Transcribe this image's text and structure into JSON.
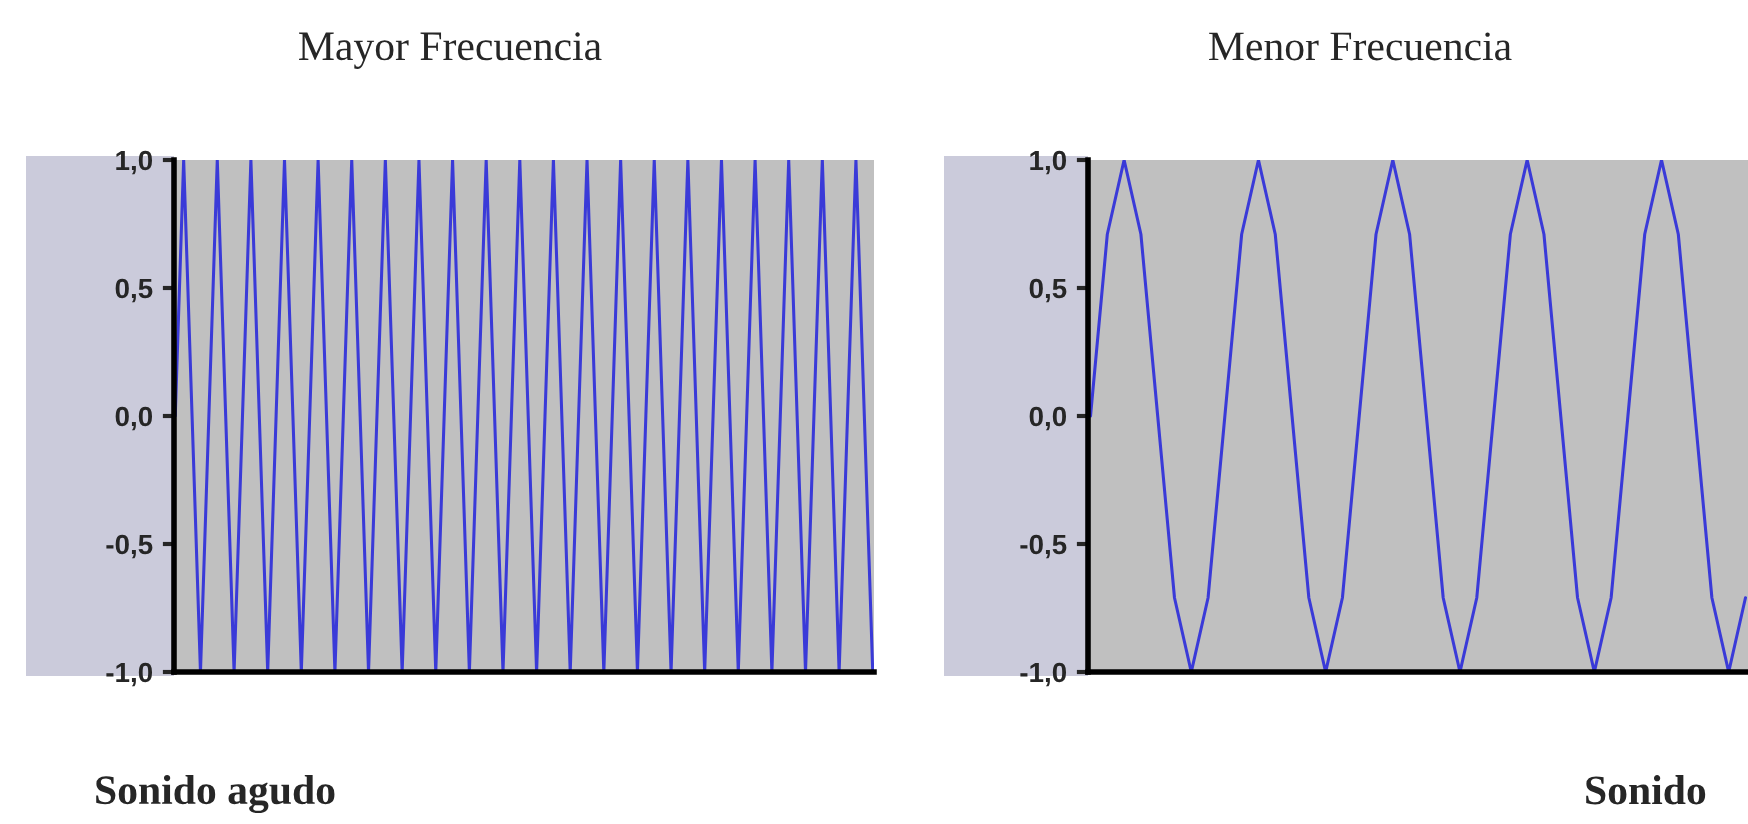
{
  "chart_data": [
    {
      "type": "line",
      "title": "Mayor Frecuencia",
      "annotations": [
        "Sonido agudo"
      ],
      "tick_labels": "y",
      "grid": false,
      "ylim": [
        -1,
        1
      ],
      "yticks": [
        {
          "value": 1,
          "label": "1,0"
        },
        {
          "value": 0.5,
          "label": "0,5"
        },
        {
          "value": 0,
          "label": "0,0"
        },
        {
          "value": -0.5,
          "label": "-0,5"
        },
        {
          "value": -1,
          "label": "-1,0"
        }
      ],
      "categories": [
        null,
        null,
        null,
        null,
        null,
        null,
        null,
        null,
        null,
        null,
        null,
        null,
        null,
        null,
        null,
        null,
        null,
        null,
        null,
        null,
        null,
        null,
        null,
        null,
        null,
        null,
        null,
        null,
        null,
        null,
        null,
        null,
        null,
        null,
        null,
        null,
        null,
        null,
        null,
        null,
        null,
        null,
        null,
        null,
        null,
        null,
        null,
        null,
        null,
        null,
        null,
        null,
        null,
        null,
        null,
        null,
        null,
        null,
        null,
        null,
        null,
        null,
        null,
        null,
        null,
        null,
        null,
        null,
        null,
        null,
        null,
        null,
        null,
        null,
        null,
        null,
        null,
        null,
        null,
        null,
        null,
        null,
        null,
        null
      ],
      "series": [
        {
          "color": "#3a3ad8",
          "values": [
            0,
            1,
            0,
            -1,
            0,
            1,
            0,
            -1,
            0,
            1,
            0,
            -1,
            0,
            1,
            0,
            -1,
            0,
            1,
            0,
            -1,
            0,
            1,
            0,
            -1,
            0,
            1,
            0,
            -1,
            0,
            1,
            0,
            -1,
            0,
            1,
            0,
            -1,
            0,
            1,
            0,
            -1,
            0,
            1,
            0,
            -1,
            0,
            1,
            0,
            -1,
            0,
            1,
            0,
            -1,
            0,
            1,
            0,
            -1,
            0,
            1,
            0,
            -1,
            0,
            1,
            0,
            -1,
            0,
            1,
            0,
            -1,
            0,
            1,
            0,
            -1,
            0,
            1,
            0,
            -1,
            0,
            1,
            0,
            -1,
            0,
            1,
            0,
            -1
          ]
        }
      ]
    },
    {
      "type": "line",
      "title": "Menor Frecuencia",
      "annotations": [
        "Sonido"
      ],
      "tick_labels": "y",
      "grid": false,
      "ylim": [
        -1,
        1
      ],
      "yticks": [
        {
          "value": 1,
          "label": "1,0"
        },
        {
          "value": 0.5,
          "label": "0,5"
        },
        {
          "value": 0,
          "label": "0,0"
        },
        {
          "value": -0.5,
          "label": "-0,5"
        },
        {
          "value": -1,
          "label": "-1,0"
        }
      ],
      "categories": [
        null,
        null,
        null,
        null,
        null,
        null,
        null,
        null,
        null,
        null,
        null,
        null,
        null,
        null,
        null,
        null,
        null,
        null,
        null,
        null,
        null,
        null,
        null,
        null,
        null,
        null,
        null,
        null,
        null,
        null,
        null,
        null,
        null,
        null,
        null,
        null,
        null,
        null,
        null,
        null
      ],
      "series": [
        {
          "color": "#3a3ad8",
          "values": [
            0,
            0.71,
            1,
            0.71,
            0,
            -0.71,
            -1,
            -0.71,
            0,
            0.71,
            1,
            0.71,
            0,
            -0.71,
            -1,
            -0.71,
            0,
            0.71,
            1,
            0.71,
            0,
            -0.71,
            -1,
            -0.71,
            0,
            0.71,
            1,
            0.71,
            0,
            -0.71,
            -1,
            -0.71,
            0,
            0.71,
            1,
            0.71,
            0,
            -0.71,
            -1,
            -0.71
          ]
        }
      ]
    }
  ]
}
